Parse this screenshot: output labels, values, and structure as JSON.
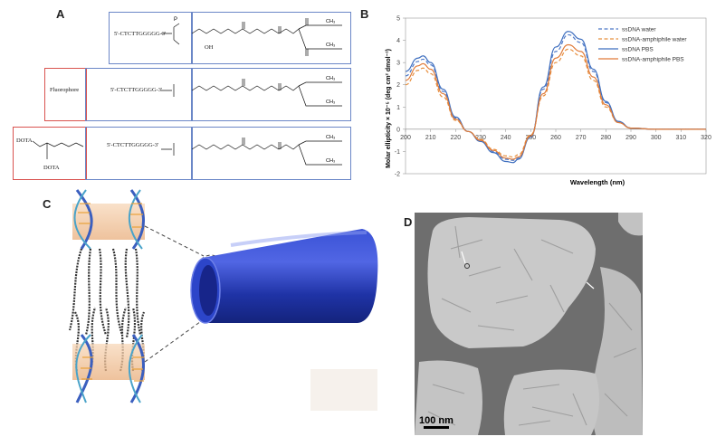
{
  "panels": {
    "a": "A",
    "b": "B",
    "c": "C",
    "d": "D"
  },
  "panel_a": {
    "row1": {
      "sequence": "5'-CTCTTGGGGG-3'",
      "phosphate": "—O—P—O",
      "tail": "OH"
    },
    "row2": {
      "label": "Fluorophore",
      "sequence": "5'-CTCTTGGGGG-3'"
    },
    "row3": {
      "label_top": "DOTA",
      "label_bottom": "DOTA",
      "sequence": "5'-CTCTTGGGGG-3'"
    },
    "chain_end": "CH3"
  },
  "colors": {
    "ssdna_water": "#4e79c8",
    "amph_water": "#e8903f",
    "ssdna_pbs": "#3f6fbf",
    "amph_pbs": "#e07b39",
    "micelle": "#2a3fb5"
  },
  "chart_data": {
    "type": "line",
    "xlabel": "Wavelength (nm)",
    "ylabel": "Molar ellipticity × 10⁻⁵ (deg cm² dmol⁻¹)",
    "xlim": [
      200,
      320
    ],
    "ylim": [
      -2,
      5
    ],
    "xticks": [
      200,
      210,
      220,
      230,
      240,
      250,
      260,
      270,
      280,
      290,
      300,
      310,
      320
    ],
    "yticks": [
      -2,
      -1,
      0,
      1,
      2,
      3,
      4,
      5
    ],
    "legend_position": "top-right",
    "x": [
      200,
      205,
      207,
      210,
      215,
      220,
      225,
      230,
      235,
      240,
      243,
      245,
      250,
      255,
      260,
      265,
      270,
      275,
      280,
      285,
      290,
      300,
      310,
      320
    ],
    "series": [
      {
        "name": "ssDNA water",
        "dashed": true,
        "color": "#4e79c8",
        "values": [
          2.4,
          3.05,
          3.15,
          2.9,
          1.7,
          0.5,
          -0.1,
          -0.5,
          -1.0,
          -1.35,
          -1.4,
          -1.3,
          -0.3,
          1.8,
          3.5,
          4.25,
          3.9,
          2.6,
          1.2,
          0.35,
          0.05,
          0,
          0,
          0
        ]
      },
      {
        "name": "ssDNA-amphiphile water",
        "dashed": true,
        "color": "#e8903f",
        "values": [
          2.0,
          2.65,
          2.75,
          2.5,
          1.45,
          0.4,
          -0.1,
          -0.45,
          -0.9,
          -1.2,
          -1.25,
          -1.15,
          -0.25,
          1.5,
          3.0,
          3.6,
          3.3,
          2.2,
          1.0,
          0.3,
          0.05,
          0,
          0,
          0
        ]
      },
      {
        "name": "ssDNA PBS",
        "dashed": false,
        "color": "#3f6fbf",
        "values": [
          2.6,
          3.2,
          3.3,
          3.0,
          1.8,
          0.55,
          -0.1,
          -0.55,
          -1.05,
          -1.45,
          -1.5,
          -1.35,
          -0.35,
          1.9,
          3.7,
          4.4,
          4.05,
          2.7,
          1.25,
          0.35,
          0.05,
          0,
          0,
          0
        ]
      },
      {
        "name": "ssDNA-amphiphile PBS",
        "dashed": false,
        "color": "#e07b39",
        "values": [
          2.2,
          2.85,
          2.95,
          2.7,
          1.6,
          0.45,
          -0.1,
          -0.5,
          -0.95,
          -1.3,
          -1.35,
          -1.25,
          -0.3,
          1.6,
          3.2,
          3.8,
          3.5,
          2.35,
          1.1,
          0.3,
          0.05,
          0,
          0,
          0
        ]
      }
    ]
  },
  "panel_d": {
    "scale_bar": "100 nm"
  }
}
